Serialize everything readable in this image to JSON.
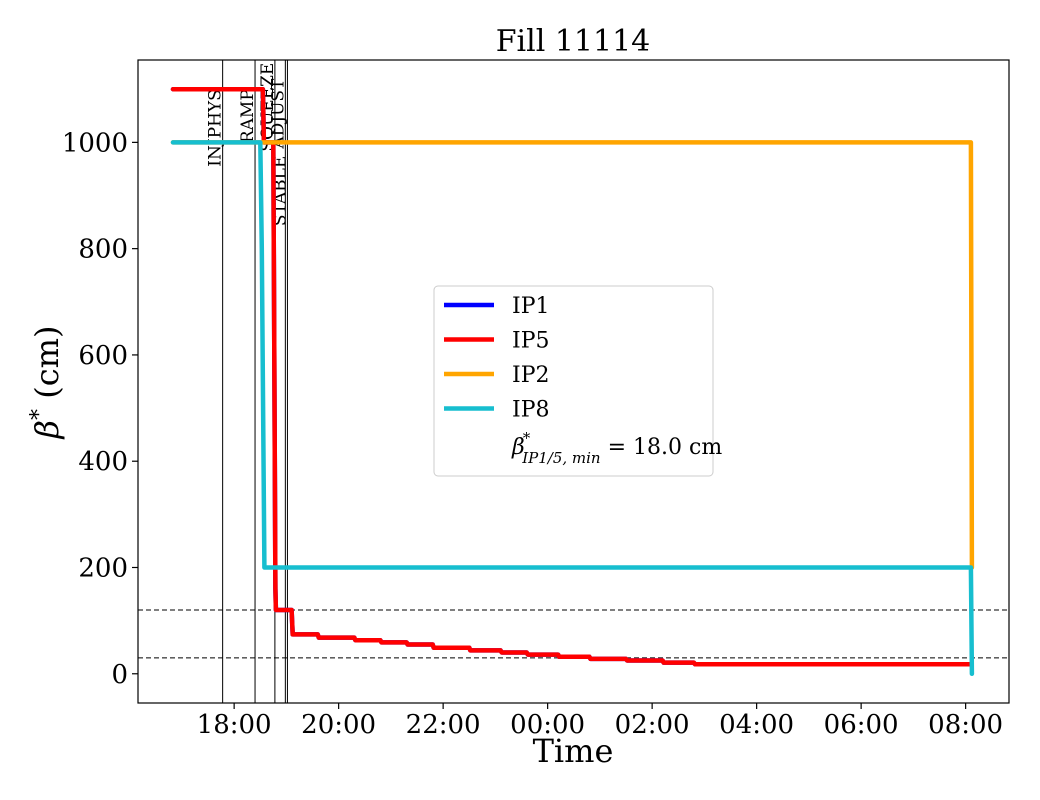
{
  "chart_data": {
    "type": "line",
    "title": "Fill 11114",
    "xlabel": "Time",
    "ylabel": "β* (cm)",
    "x_tick_labels": [
      "18:00",
      "20:00",
      "22:00",
      "00:00",
      "02:00",
      "04:00",
      "06:00",
      "08:00"
    ],
    "x_tick_hours": [
      18,
      20,
      22,
      24,
      26,
      28,
      30,
      32
    ],
    "xlim_hours": [
      16.16,
      32.83
    ],
    "y_ticks": [
      0,
      200,
      400,
      600,
      800,
      1000
    ],
    "ylim": [
      -55,
      1155
    ],
    "grid": false,
    "legend_position": "center",
    "colors": {
      "IP1": "#0000ff",
      "IP5": "#ff0000",
      "IP2": "#ffa500",
      "IP8": "#17becf"
    },
    "series": [
      {
        "name": "IP1",
        "x_hours": [
          16.83,
          18.55,
          18.57,
          18.75,
          18.79,
          18.8,
          19.1,
          19.12,
          19.6,
          19.62,
          20.3,
          20.32,
          20.8,
          20.82,
          21.3,
          21.32,
          21.8,
          21.82,
          22.5,
          22.52,
          23.1,
          23.12,
          23.6,
          23.62,
          24.2,
          24.22,
          24.8,
          24.82,
          25.5,
          25.52,
          26.2,
          26.22,
          26.8,
          26.82,
          32.1
        ],
        "values": [
          1100,
          1100,
          1000,
          1000,
          160,
          120,
          120,
          74,
          74,
          68,
          68,
          63,
          63,
          59,
          59,
          55,
          55,
          49,
          49,
          44,
          44,
          40,
          40,
          36,
          36,
          32,
          32,
          28,
          28,
          25,
          25,
          21,
          21,
          18,
          18
        ]
      },
      {
        "name": "IP5",
        "x_hours": [
          16.83,
          18.55,
          18.57,
          18.75,
          18.79,
          18.8,
          19.1,
          19.12,
          19.6,
          19.62,
          20.3,
          20.32,
          20.8,
          20.82,
          21.3,
          21.32,
          21.8,
          21.82,
          22.5,
          22.52,
          23.1,
          23.12,
          23.6,
          23.62,
          24.2,
          24.22,
          24.8,
          24.82,
          25.5,
          25.52,
          26.2,
          26.22,
          26.8,
          26.82,
          32.1
        ],
        "values": [
          1100,
          1100,
          1000,
          1000,
          160,
          120,
          120,
          74,
          74,
          68,
          68,
          63,
          63,
          59,
          59,
          55,
          55,
          49,
          49,
          44,
          44,
          40,
          40,
          36,
          36,
          32,
          32,
          28,
          28,
          25,
          25,
          21,
          21,
          18,
          18
        ]
      },
      {
        "name": "IP2",
        "x_hours": [
          16.83,
          32.1,
          32.12
        ],
        "values": [
          1000,
          1000,
          200
        ]
      },
      {
        "name": "IP8",
        "x_hours": [
          16.83,
          18.5,
          18.53,
          18.58,
          32.1,
          32.12
        ],
        "values": [
          1000,
          1000,
          800,
          200,
          200,
          0
        ]
      }
    ],
    "hlines": [
      120,
      30
    ],
    "phases": [
      {
        "label": "INJPHYS",
        "x_hours": 17.78,
        "label_top": 1100
      },
      {
        "label": "RAMP",
        "x_hours": 18.4,
        "label_top": 1100
      },
      {
        "label": "SQUEEZE",
        "x_hours": 18.78,
        "label_top": 1150
      },
      {
        "label": "ADJUST",
        "x_hours": 18.98,
        "label_top": 1120
      },
      {
        "label": "STABLE",
        "x_hours": 19.02,
        "label_top": 975
      }
    ],
    "legend_entries": [
      "IP1",
      "IP5",
      "IP2",
      "IP8"
    ],
    "legend_note": {
      "symbol": "β",
      "superscript": "*",
      "subscript": "IP1/5, min",
      "text": " = 18.0 cm"
    }
  }
}
